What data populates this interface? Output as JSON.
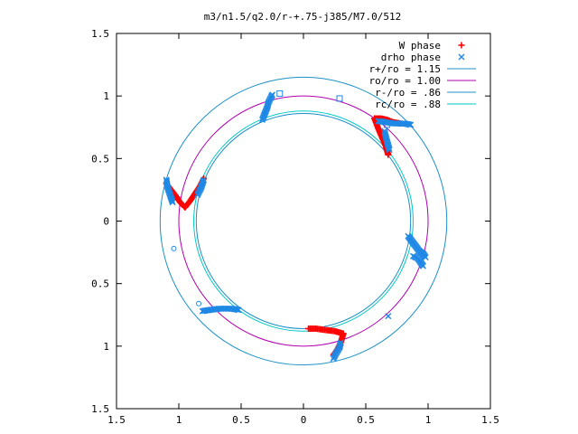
{
  "chart_data": {
    "type": "scatter",
    "title": "m3/n1.5/q2.0/r-+.75-j385/M7.0/512",
    "xlabel": "",
    "ylabel": "",
    "xlim": [
      -1.5,
      1.5
    ],
    "ylim": [
      -1.5,
      1.5
    ],
    "x_tick_values": [
      -1.5,
      -1,
      -0.5,
      0,
      0.5,
      1,
      1.5
    ],
    "y_tick_values": [
      -1.5,
      -1,
      -0.5,
      0,
      0.5,
      1,
      1.5
    ],
    "x_tick_labels": [
      "1.5",
      "1",
      "0.5",
      "0",
      "0.5",
      "1",
      "1.5"
    ],
    "y_tick_labels": [
      "1.5",
      "1",
      "0.5",
      "0",
      "0.5",
      "1",
      "1.5"
    ],
    "grid": false,
    "legend_position": "top-right",
    "legend": [
      {
        "label": "W phase",
        "symbol": "+",
        "color": "#ff0000"
      },
      {
        "label": "drho phase",
        "symbol": "x",
        "color": "#1e88e5"
      },
      {
        "label": "r+/ro = 1.15",
        "symbol": "line",
        "color": "#1e90c8"
      },
      {
        "label": "ro/ro = 1.00",
        "symbol": "line",
        "color": "#b000b0"
      },
      {
        "label": "r-/ro = .86",
        "symbol": "line",
        "color": "#1e90c8"
      },
      {
        "label": "rc/ro = .88",
        "symbol": "line",
        "color": "#00c8c8"
      }
    ],
    "circles": [
      {
        "name": "r+/ro",
        "r": 1.15,
        "color": "#1e90c8"
      },
      {
        "name": "ro/ro",
        "r": 1.0,
        "color": "#b000b0"
      },
      {
        "name": "r-/ro",
        "r": 0.86,
        "color": "#1e90c8"
      },
      {
        "name": "rc/ro",
        "r": 0.88,
        "color": "#00c8c8"
      }
    ],
    "series": [
      {
        "name": "W phase",
        "marker": "plus",
        "color": "#ff0000",
        "arms": [
          [
            [
              -0.95,
              0.11
            ],
            [
              -0.99,
              0.15
            ],
            [
              -1.03,
              0.21
            ],
            [
              -1.07,
              0.26
            ],
            [
              -1.1,
              0.3
            ]
          ],
          [
            [
              -0.95,
              0.11
            ],
            [
              -0.91,
              0.16
            ],
            [
              -0.87,
              0.22
            ],
            [
              -0.83,
              0.28
            ],
            [
              -0.8,
              0.34
            ]
          ],
          [
            [
              0.57,
              0.82
            ],
            [
              0.62,
              0.82
            ],
            [
              0.67,
              0.81
            ],
            [
              0.72,
              0.79
            ],
            [
              0.78,
              0.78
            ]
          ],
          [
            [
              0.57,
              0.82
            ],
            [
              0.6,
              0.74
            ],
            [
              0.63,
              0.67
            ],
            [
              0.66,
              0.6
            ],
            [
              0.68,
              0.53
            ]
          ],
          [
            [
              0.32,
              -0.9
            ],
            [
              0.25,
              -0.88
            ],
            [
              0.17,
              -0.87
            ],
            [
              0.1,
              -0.86
            ],
            [
              0.04,
              -0.86
            ]
          ],
          [
            [
              0.32,
              -0.9
            ],
            [
              0.3,
              -0.97
            ],
            [
              0.27,
              -1.03
            ],
            [
              0.24,
              -1.07
            ]
          ]
        ]
      },
      {
        "name": "drho phase",
        "marker": "cross",
        "color": "#1e88e5",
        "arms": [
          [
            [
              -1.1,
              0.33
            ],
            [
              -1.09,
              0.27
            ],
            [
              -1.07,
              0.21
            ],
            [
              -1.05,
              0.15
            ]
          ],
          [
            [
              -0.85,
              0.21
            ],
            [
              -0.82,
              0.27
            ],
            [
              -0.8,
              0.33
            ]
          ],
          [
            [
              -0.33,
              0.81
            ],
            [
              -0.31,
              0.86
            ],
            [
              -0.29,
              0.91
            ],
            [
              -0.28,
              0.95
            ],
            [
              -0.26,
              0.99
            ],
            [
              -0.25,
              1.01
            ]
          ],
          [
            [
              0.6,
              0.8
            ],
            [
              0.66,
              0.79
            ],
            [
              0.73,
              0.78
            ],
            [
              0.81,
              0.78
            ],
            [
              0.86,
              0.77
            ]
          ],
          [
            [
              0.65,
              0.72
            ],
            [
              0.67,
              0.64
            ],
            [
              0.69,
              0.57
            ]
          ],
          [
            [
              0.84,
              -0.12
            ],
            [
              0.87,
              -0.16
            ],
            [
              0.9,
              -0.2
            ],
            [
              0.93,
              -0.24
            ],
            [
              0.96,
              -0.26
            ],
            [
              0.98,
              -0.29
            ]
          ],
          [
            [
              -0.81,
              -0.72
            ],
            [
              -0.75,
              -0.71
            ],
            [
              -0.67,
              -0.7
            ],
            [
              -0.58,
              -0.7
            ],
            [
              -0.52,
              -0.71
            ]
          ],
          [
            [
              0.24,
              -1.1
            ],
            [
              0.26,
              -1.06
            ],
            [
              0.29,
              -1.01
            ],
            [
              0.3,
              -0.97
            ]
          ],
          [
            [
              0.88,
              -0.28
            ],
            [
              0.92,
              -0.3
            ],
            [
              0.96,
              -0.36
            ]
          ],
          [
            [
              0.68,
              -0.76
            ]
          ]
        ]
      },
      {
        "name": "drho phase open markers",
        "marker": "square",
        "color": "#1e88e5",
        "points": [
          [
            -0.19,
            1.02
          ],
          [
            0.29,
            0.98
          ],
          [
            0.67,
            0.77
          ]
        ]
      },
      {
        "name": "drho phase open circles",
        "marker": "circle",
        "color": "#1e88e5",
        "points": [
          [
            -1.04,
            -0.22
          ],
          [
            -0.84,
            -0.66
          ]
        ]
      }
    ]
  }
}
